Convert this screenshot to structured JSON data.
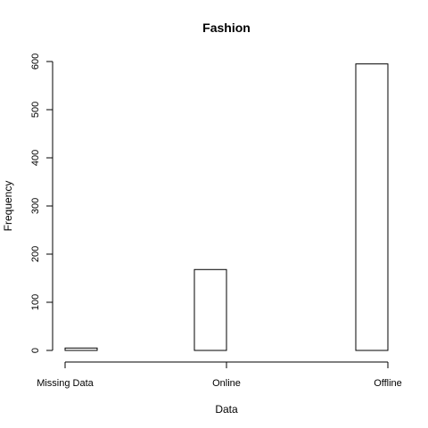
{
  "chart_data": {
    "type": "bar",
    "title": "Fashion",
    "xlabel": "Data",
    "ylabel": "Frequency",
    "categories": [
      "Missing Data",
      "Online",
      "Offline"
    ],
    "values": [
      5,
      168,
      595
    ],
    "ylim": [
      0,
      600
    ],
    "yticks": [
      "0",
      "100",
      "200",
      "300",
      "400",
      "500",
      "600"
    ],
    "grid": false,
    "legend": "none",
    "bar_fill": "#ffffff",
    "bar_stroke": "#000000"
  }
}
